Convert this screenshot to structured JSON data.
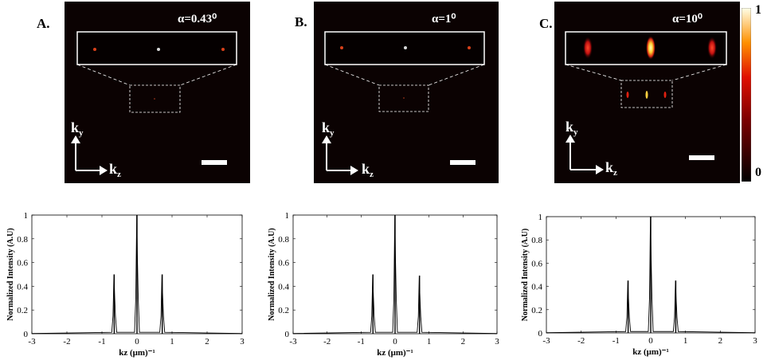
{
  "figure": {
    "panels": [
      {
        "label": "A.",
        "alpha": "α=0.43⁰"
      },
      {
        "label": "B.",
        "alpha": "α=1⁰"
      },
      {
        "label": "C.",
        "alpha": "α=10⁰"
      }
    ],
    "axes_labels": {
      "ky": "k",
      "ky_sub": "y",
      "kz": "k",
      "kz_sub": "z"
    },
    "colorbar": {
      "max_label": "1",
      "min_label": "0"
    }
  },
  "chart_data": [
    {
      "type": "line",
      "xlabel": "kz (μm)⁻¹",
      "ylabel": "Normalized Intensity (A.U)",
      "xlim": [
        -3,
        3
      ],
      "ylim": [
        0,
        1
      ],
      "xticks": [
        -3,
        -2,
        -1,
        0,
        1,
        2,
        3
      ],
      "yticks": [
        0,
        0.2,
        0.4,
        0.6,
        0.8,
        1
      ],
      "peaks": [
        {
          "x": -0.65,
          "y": 0.5
        },
        {
          "x": 0.0,
          "y": 1.0
        },
        {
          "x": 0.72,
          "y": 0.5
        }
      ]
    },
    {
      "type": "line",
      "xlabel": "kz (μm)⁻¹",
      "ylabel": "Normalized Intensity (A.U)",
      "xlim": [
        -3,
        3
      ],
      "ylim": [
        0,
        1
      ],
      "xticks": [
        -3,
        -2,
        -1,
        0,
        1,
        2,
        3
      ],
      "yticks": [
        0,
        0.2,
        0.4,
        0.6,
        0.8,
        1
      ],
      "peaks": [
        {
          "x": -0.65,
          "y": 0.5
        },
        {
          "x": 0.0,
          "y": 1.0
        },
        {
          "x": 0.72,
          "y": 0.49
        }
      ]
    },
    {
      "type": "line",
      "xlabel": "kz (μm)⁻¹",
      "ylabel": "Normalized Intensity (A.U)",
      "xlim": [
        -3,
        3
      ],
      "ylim": [
        0,
        1
      ],
      "xticks": [
        -3,
        -2,
        -1,
        0,
        1,
        2,
        3
      ],
      "yticks": [
        0,
        0.2,
        0.4,
        0.6,
        0.8,
        1
      ],
      "peaks": [
        {
          "x": -0.65,
          "y": 0.45
        },
        {
          "x": 0.0,
          "y": 1.0
        },
        {
          "x": 0.72,
          "y": 0.45
        }
      ]
    }
  ]
}
